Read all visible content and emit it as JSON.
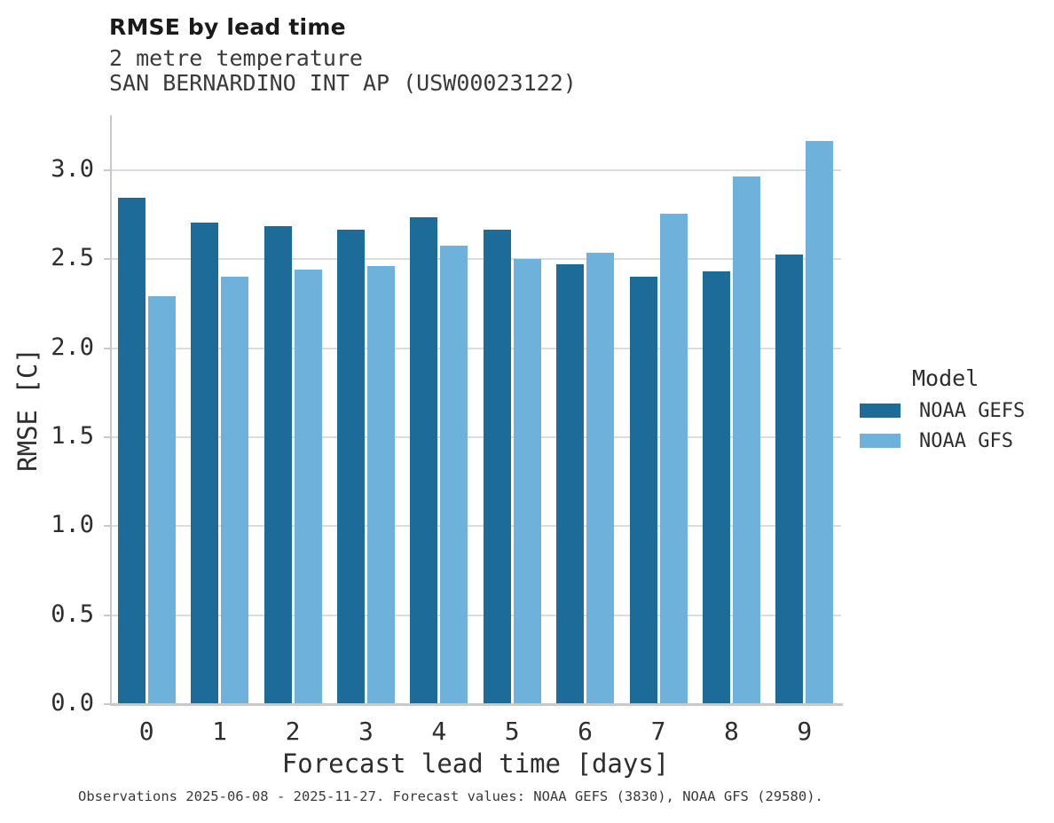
{
  "header": {
    "title": "RMSE by lead time",
    "subtitle1": "2 metre temperature",
    "subtitle2": "SAN BERNARDINO INT AP (USW00023122)"
  },
  "axes": {
    "xlabel": "Forecast lead time [days]",
    "ylabel": "RMSE [C]"
  },
  "legend": {
    "title": "Model",
    "entries": [
      {
        "label": "NOAA GEFS",
        "color": "#1d6b99"
      },
      {
        "label": "NOAA GFS",
        "color": "#6eb1da"
      }
    ]
  },
  "footer": {
    "note": "Observations 2025-06-08 - 2025-11-27. Forecast values: NOAA GEFS (3830), NOAA GFS (29580)."
  },
  "colors": {
    "gefs": "#1d6b99",
    "gfs": "#6eb1da",
    "grid": "#dcdcdc",
    "spine": "#c9c9c9",
    "background": "#ffffff"
  },
  "chart_data": {
    "type": "bar",
    "title": "RMSE by lead time",
    "subtitle": [
      "2 metre temperature",
      "SAN BERNARDINO INT AP (USW00023122)"
    ],
    "xlabel": "Forecast lead time [days]",
    "ylabel": "RMSE [C]",
    "categories": [
      "0",
      "1",
      "2",
      "3",
      "4",
      "5",
      "6",
      "7",
      "8",
      "9"
    ],
    "series": [
      {
        "name": "NOAA GEFS",
        "color": "#1d6b99",
        "values": [
          2.84,
          2.7,
          2.68,
          2.66,
          2.73,
          2.66,
          2.47,
          2.4,
          2.43,
          2.52
        ]
      },
      {
        "name": "NOAA GFS",
        "color": "#6eb1da",
        "values": [
          2.29,
          2.4,
          2.44,
          2.46,
          2.57,
          2.5,
          2.53,
          2.75,
          2.96,
          3.16
        ]
      }
    ],
    "ylim": [
      0,
      3.31
    ],
    "yticks": [
      0.0,
      0.5,
      1.0,
      1.5,
      2.0,
      2.5,
      3.0
    ],
    "grid": "horizontal",
    "legend_position": "right",
    "legend_title": "Model"
  }
}
